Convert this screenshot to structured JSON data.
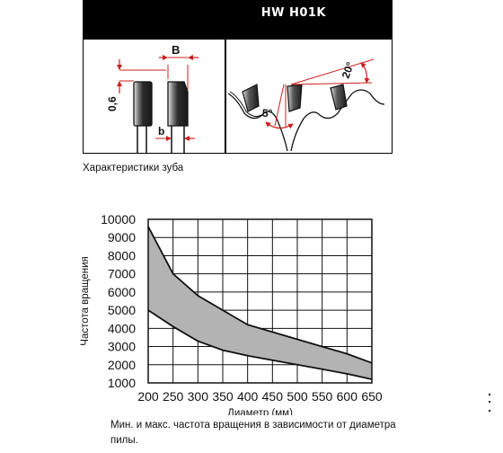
{
  "header": {
    "title": "HW  H01K"
  },
  "tooth_diagram": {
    "dim_B": "B",
    "dim_b": "b",
    "dim_height": "0,6",
    "angle_hook": "5°",
    "angle_top": "20°",
    "accent_color": "#cc1f1f"
  },
  "caption": "Характеристики зуба",
  "chart_data": {
    "type": "area",
    "xlabel": "Диаметр (мм)",
    "ylabel": "Частота вращения",
    "x_ticks": [
      "200",
      "250",
      "300",
      "350",
      "400",
      "450",
      "500",
      "550",
      "600",
      "650"
    ],
    "y_ticks": [
      "1000",
      "2000",
      "3000",
      "4000",
      "5000",
      "6000",
      "7000",
      "8000",
      "9000",
      "10000"
    ],
    "xlim": [
      200,
      650
    ],
    "ylim": [
      1000,
      10000
    ],
    "grid": true,
    "series": [
      {
        "x": [
          200,
          250,
          300,
          350,
          400,
          450,
          500,
          550,
          600,
          650
        ],
        "values": [
          9600,
          7000,
          5800,
          5000,
          4200,
          3800,
          3400,
          3000,
          2600,
          2100
        ]
      },
      {
        "x": [
          200,
          250,
          300,
          350,
          400,
          450,
          500,
          550,
          600,
          650
        ],
        "values": [
          5000,
          4100,
          3300,
          2800,
          2500,
          2250,
          2000,
          1750,
          1500,
          1200
        ]
      }
    ],
    "fill_color": "#b3b3b3"
  },
  "note": "Мин. и макс. частота вращения в зависимости от диаметра пилы."
}
